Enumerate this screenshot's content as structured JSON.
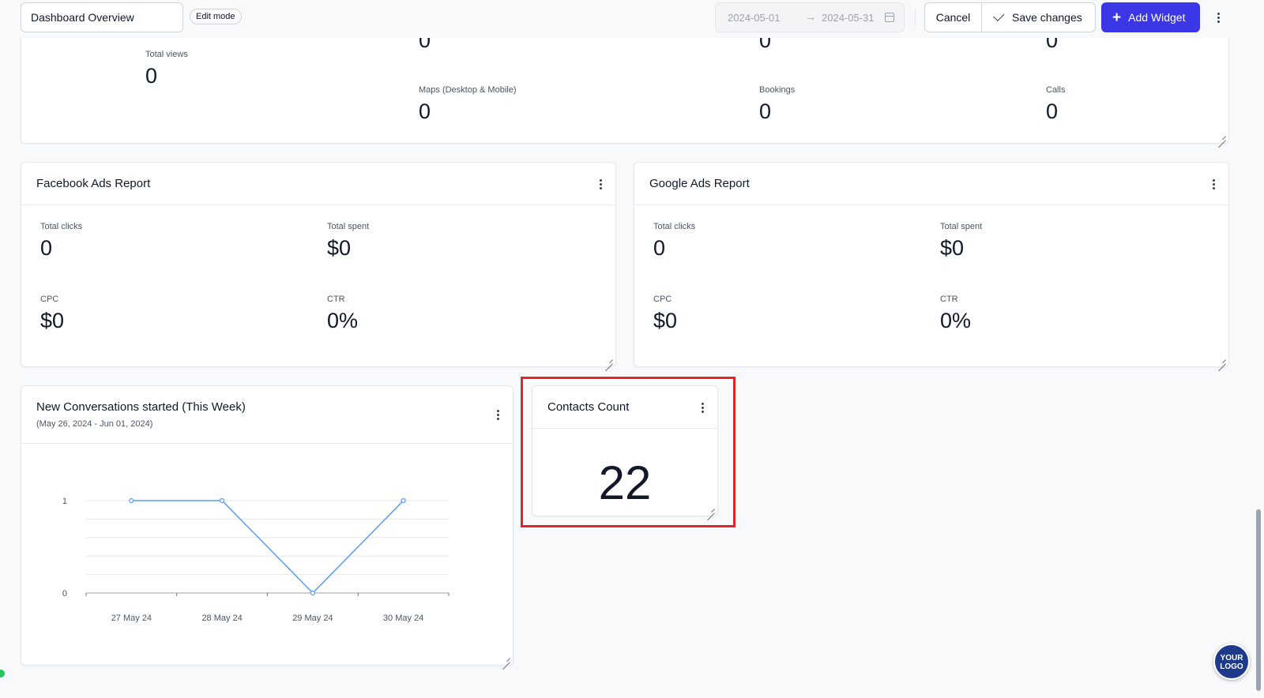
{
  "toolbar": {
    "title_value": "Dashboard Overview",
    "edit_badge": "Edit mode",
    "date_start": "2024-05-01",
    "date_arrow": "→",
    "date_end": "2024-05-31",
    "cancel_label": "Cancel",
    "save_label": "Save changes",
    "add_label": "Add Widget",
    "add_icon": "+"
  },
  "top_card": {
    "total_views_label": "Total views",
    "total_views_value": "0",
    "cols": [
      {
        "top_value": "0",
        "label": "Maps (Desktop & Mobile)",
        "value": "0"
      },
      {
        "top_value": "0",
        "label": "Bookings",
        "value": "0"
      },
      {
        "top_value": "0",
        "label": "Calls",
        "value": "0"
      }
    ]
  },
  "facebook": {
    "title": "Facebook Ads Report",
    "metrics": [
      {
        "label": "Total clicks",
        "value": "0"
      },
      {
        "label": "Total spent",
        "value": "$0"
      },
      {
        "label": "CPC",
        "value": "$0"
      },
      {
        "label": "CTR",
        "value": "0%"
      }
    ]
  },
  "google": {
    "title": "Google Ads Report",
    "metrics": [
      {
        "label": "Total clicks",
        "value": "0"
      },
      {
        "label": "Total spent",
        "value": "$0"
      },
      {
        "label": "CPC",
        "value": "$0"
      },
      {
        "label": "CTR",
        "value": "0%"
      }
    ]
  },
  "conversations": {
    "title": "New Conversations started (This Week)",
    "subtitle": "(May 26, 2024 - Jun 01, 2024)"
  },
  "contacts": {
    "title": "Contacts Count",
    "value": "22"
  },
  "logo": {
    "line1": "YOUR",
    "line2": "LOGO"
  },
  "colors": {
    "accent": "#3b37e6",
    "line": "#5b9cf5",
    "highlight": "#e52525"
  },
  "chart_data": {
    "type": "line",
    "categories": [
      "27 May 24",
      "28 May 24",
      "29 May 24",
      "30 May 24"
    ],
    "series": [
      {
        "values": [
          1,
          1,
          0,
          1
        ]
      }
    ],
    "yticks": [
      "0",
      "1"
    ],
    "ylim": [
      0,
      1
    ],
    "grid": true,
    "title": "",
    "xlabel": "",
    "ylabel": ""
  }
}
